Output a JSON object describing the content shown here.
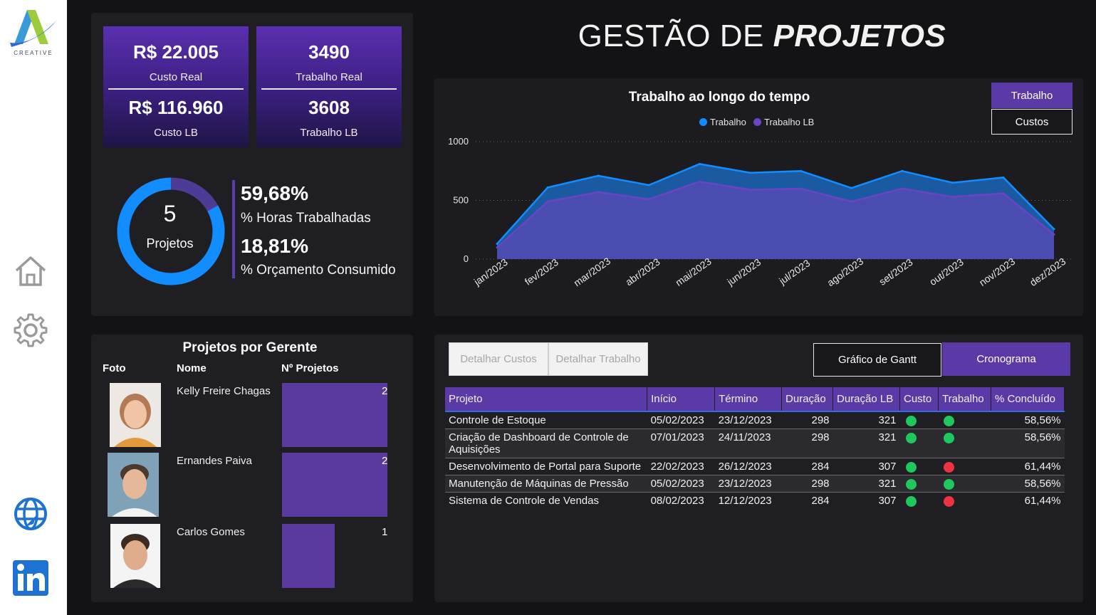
{
  "brand": {
    "logo_text": "CREATIVE"
  },
  "title": {
    "normal": "GESTÃO DE ",
    "bold": "PROJETOS"
  },
  "kpis": [
    {
      "value": "R$ 22.005",
      "label": "Custo Real",
      "value2": "R$ 116.960",
      "label2": "Custo LB"
    },
    {
      "value": "3490",
      "label": "Trabalho Real",
      "value2": "3608",
      "label2": "Trabalho LB"
    }
  ],
  "donut": {
    "value": "5",
    "label": "Projetos",
    "progress_pct": 83
  },
  "percentages": [
    {
      "value": "59,68%",
      "label": "% Horas Trabalhadas"
    },
    {
      "value": "18,81%",
      "label": "% Orçamento Consumido"
    }
  ],
  "colors": {
    "accent": "#5b3aa8",
    "blue": "#118dff",
    "purple": "#6b44c4",
    "ok": "#1ec85d",
    "bad": "#ee3340"
  },
  "chart_toggle": {
    "active": "Trabalho",
    "inactive": "Custos"
  },
  "chart_data": {
    "type": "area",
    "title": "Trabalho ao longo do tempo",
    "categories": [
      "jan/2023",
      "fev/2023",
      "mar/2023",
      "abr/2023",
      "mai/2023",
      "jun/2023",
      "jul/2023",
      "ago/2023",
      "set/2023",
      "out/2023",
      "nov/2023",
      "dez/2023"
    ],
    "series": [
      {
        "name": "Trabalho",
        "values": [
          130,
          610,
          710,
          630,
          810,
          735,
          750,
          605,
          750,
          650,
          695,
          255
        ]
      },
      {
        "name": "Trabalho LB",
        "values": [
          100,
          490,
          570,
          510,
          660,
          590,
          600,
          490,
          600,
          530,
          560,
          210
        ]
      }
    ],
    "ylim": [
      0,
      1000
    ],
    "yticks": [
      "0",
      "500",
      "1000"
    ],
    "grid": true,
    "legend": "top-center"
  },
  "managers": {
    "title": "Projetos por Gerente",
    "headers": {
      "photo": "Foto",
      "name": "Nome",
      "count": "Nº Projetos"
    },
    "rows": [
      {
        "name": "Kelly Freire Chagas",
        "count": 2
      },
      {
        "name": "Ernandes Paiva",
        "count": 2
      },
      {
        "name": "Carlos Gomes",
        "count": 1
      }
    ]
  },
  "table_buttons": {
    "detail_costs": "Detalhar Custos",
    "detail_work": "Detalhar Trabalho",
    "gantt": "Gráfico de Gantt",
    "schedule": "Cronograma"
  },
  "projects": {
    "headers": [
      "Projeto",
      "Início",
      "Término",
      "Duração",
      "Duração LB",
      "Custo",
      "Trabalho",
      "% Concluído"
    ],
    "rows": [
      {
        "name": "Controle de Estoque",
        "start": "05/02/2023",
        "end": "23/12/2023",
        "dur": "298",
        "dur_lb": "321",
        "cost": "ok",
        "work": "ok",
        "pct": "58,56%"
      },
      {
        "name": "Criação de Dashboard de Controle de Aquisições",
        "start": "07/01/2023",
        "end": "24/11/2023",
        "dur": "298",
        "dur_lb": "321",
        "cost": "ok",
        "work": "ok",
        "pct": "58,56%"
      },
      {
        "name": "Desenvolvimento de Portal para Suporte",
        "start": "22/02/2023",
        "end": "26/12/2023",
        "dur": "284",
        "dur_lb": "307",
        "cost": "ok",
        "work": "bad",
        "pct": "61,44%"
      },
      {
        "name": "Manutenção de Máquinas de Pressão",
        "start": "05/02/2023",
        "end": "23/12/2023",
        "dur": "298",
        "dur_lb": "321",
        "cost": "ok",
        "work": "ok",
        "pct": "58,56%"
      },
      {
        "name": "Sistema de Controle de Vendas",
        "start": "08/02/2023",
        "end": "12/12/2023",
        "dur": "284",
        "dur_lb": "307",
        "cost": "ok",
        "work": "bad",
        "pct": "61,44%"
      }
    ]
  },
  "icons": [
    "home-icon",
    "gear-icon",
    "globe-icon",
    "linkedin-icon"
  ]
}
